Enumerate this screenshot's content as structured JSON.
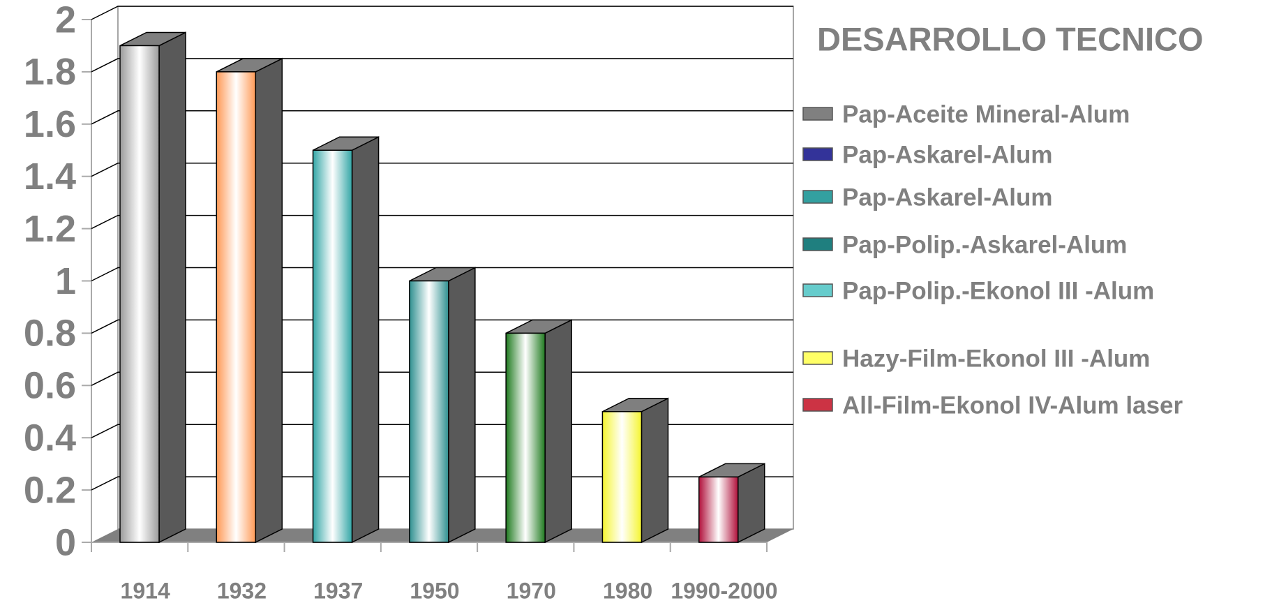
{
  "chart_data": {
    "type": "bar3d",
    "title": "DESARROLLO  TECNICO",
    "categories": [
      "1914",
      "1932",
      "1937",
      "1950",
      "1970",
      "1980",
      "1990-2000"
    ],
    "values": [
      1.9,
      1.8,
      1.5,
      1.0,
      0.8,
      0.5,
      0.25
    ],
    "colors": [
      "#9a9a9a",
      "#ff9955",
      "#33a6a6",
      "#2f9090",
      "#1f7a1f",
      "#f5f530",
      "#b0103a"
    ],
    "ylim": [
      0,
      2
    ],
    "yticks": [
      0,
      0.2,
      0.4,
      0.6,
      0.8,
      1,
      1.2,
      1.4,
      1.6,
      1.8,
      2
    ],
    "grid": true,
    "legend": [
      {
        "name": "Pap-Aceite Mineral-Alum",
        "color": "#808080"
      },
      {
        "name": "Pap-Askarel-Alum",
        "color": "#333399"
      },
      {
        "name": "Pap-Askarel-Alum",
        "color": "#33a0a0"
      },
      {
        "name": "Pap-Polip.-Askarel-Alum",
        "color": "#1f7f7f"
      },
      {
        "name": "Pap-Polip.-Ekonol III -Alum",
        "color": "#66cccc"
      },
      {
        "name": "Hazy-Film-Ekonol III -Alum",
        "color": "#ffff66"
      },
      {
        "name": "All-Film-Ekonol IV-Alum laser",
        "color": "#cc3344"
      }
    ]
  }
}
